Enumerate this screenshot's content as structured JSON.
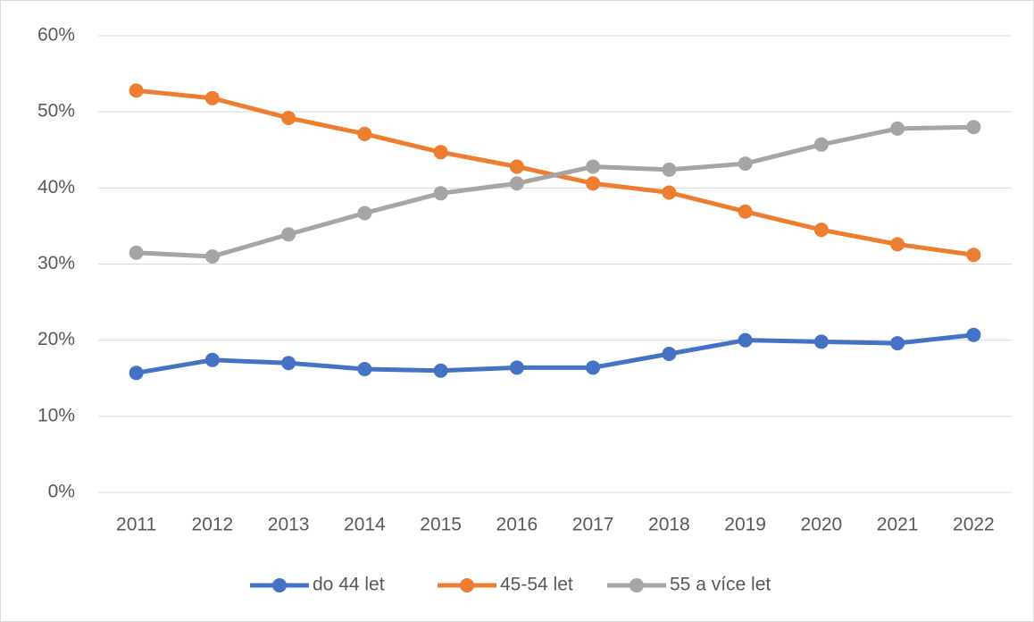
{
  "chart_data": {
    "type": "line",
    "categories": [
      "2011",
      "2012",
      "2013",
      "2014",
      "2015",
      "2016",
      "2017",
      "2018",
      "2019",
      "2020",
      "2021",
      "2022"
    ],
    "series": [
      {
        "name": "do 44 let",
        "color": "#4472c4",
        "values": [
          15.7,
          17.4,
          17.0,
          16.2,
          16.0,
          16.4,
          16.4,
          18.2,
          20.0,
          19.8,
          19.6,
          20.7
        ]
      },
      {
        "name": "45-54 let",
        "color": "#ed7d31",
        "values": [
          52.8,
          51.8,
          49.2,
          47.1,
          44.7,
          42.8,
          40.6,
          39.4,
          36.9,
          34.5,
          32.6,
          31.2
        ]
      },
      {
        "name": "55 a více let",
        "color": "#a5a5a5",
        "values": [
          31.5,
          31.0,
          33.9,
          36.7,
          39.3,
          40.6,
          42.8,
          42.4,
          43.2,
          45.7,
          47.8,
          48.0
        ]
      }
    ],
    "ylim": [
      0,
      60
    ],
    "yticks": [
      {
        "value": 0,
        "label": "0%"
      },
      {
        "value": 10,
        "label": "10%"
      },
      {
        "value": 20,
        "label": "20%"
      },
      {
        "value": 30,
        "label": "30%"
      },
      {
        "value": 40,
        "label": "40%"
      },
      {
        "value": 50,
        "label": "50%"
      },
      {
        "value": 60,
        "label": "60%"
      }
    ],
    "grid": true,
    "legend": "bottom"
  }
}
